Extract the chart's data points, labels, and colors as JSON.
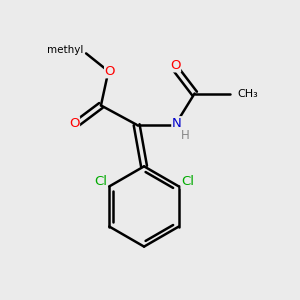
{
  "background_color": "#ebebeb",
  "bond_color": "#000000",
  "atom_colors": {
    "O": "#ff0000",
    "N": "#0000cc",
    "Cl": "#00aa00",
    "C": "#000000",
    "H": "#888888"
  },
  "figsize": [
    3.0,
    3.0
  ],
  "dpi": 100
}
